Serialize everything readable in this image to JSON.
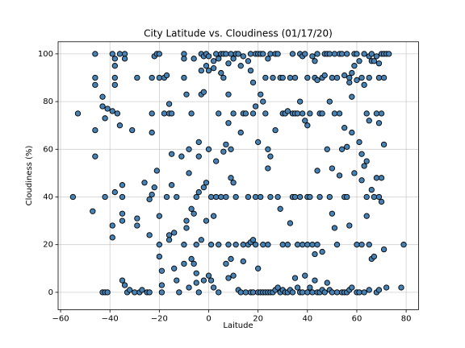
{
  "chart_data": {
    "type": "scatter",
    "title": "City Latitude vs. Cloudiness (01/17/20)",
    "x_label": "Laitude",
    "y_label": "Cloudiness (%)",
    "color": "#4682b4",
    "edgecolor": "#000000",
    "grid": true,
    "xlim": [
      -61,
      85
    ],
    "ylim": [
      -7.3,
      105.1
    ],
    "xticks": [
      {
        "value": -60,
        "label": "−60"
      },
      {
        "value": -40,
        "label": "−40"
      },
      {
        "value": -20,
        "label": "−20"
      },
      0,
      20,
      40,
      60,
      80
    ],
    "yticks": [
      0,
      20,
      40,
      60,
      80,
      100
    ],
    "x": [
      -55,
      -53,
      -46,
      -46,
      -46,
      -46,
      -46,
      -47,
      -43,
      -42,
      -41,
      -43,
      -43,
      -42,
      -42,
      -41,
      -39,
      -39,
      -38,
      -38,
      -38,
      -38,
      -38,
      -39,
      -39,
      -37,
      -36,
      -36,
      -35,
      -35,
      -35,
      -35,
      -35,
      -34,
      -34,
      -34,
      -33,
      -32,
      -31,
      -30,
      -29,
      -29,
      -29,
      -28,
      -27,
      -26,
      -25,
      -24,
      -24,
      -24,
      -23,
      -23,
      -23,
      -23,
      -22,
      -22,
      -21,
      -21,
      -20,
      -20,
      -20,
      -20,
      -20,
      -19,
      -19,
      -19,
      -18,
      -18,
      -17,
      -17,
      -16,
      -16,
      -16,
      -16,
      -15,
      -15,
      -15,
      -14,
      -14,
      -13,
      -13,
      -12,
      -11,
      -10,
      -10,
      -10,
      -10,
      -10,
      -9,
      -9,
      -9,
      -8,
      -8,
      -8,
      -7,
      -7,
      -7,
      -6,
      -6,
      -6,
      -5,
      -5,
      -5,
      -5,
      -4,
      -4,
      -4,
      -4,
      -3,
      -3,
      -3,
      -3,
      -2,
      -2,
      -2,
      -2,
      -1,
      -1,
      -1,
      -1,
      0,
      0,
      0,
      0,
      1,
      1,
      1,
      2,
      2,
      2,
      2,
      3,
      3,
      3,
      4,
      4,
      4,
      4,
      5,
      5,
      5,
      6,
      6,
      6,
      7,
      7,
      7,
      7,
      8,
      8,
      8,
      8,
      8,
      9,
      9,
      9,
      9,
      10,
      10,
      10,
      10,
      11,
      11,
      11,
      12,
      12,
      13,
      13,
      13,
      14,
      14,
      14,
      14,
      15,
      15,
      16,
      16,
      16,
      17,
      17,
      17,
      17,
      18,
      18,
      18,
      18,
      19,
      19,
      19,
      19,
      20,
      20,
      20,
      20,
      21,
      21,
      21,
      21,
      22,
      22,
      22,
      22,
      23,
      23,
      23,
      24,
      24,
      24,
      24,
      24,
      25,
      25,
      25,
      25,
      26,
      26,
      27,
      27,
      27,
      28,
      28,
      28,
      29,
      29,
      29,
      30,
      30,
      30,
      30,
      31,
      31,
      32,
      32,
      32,
      33,
      33,
      33,
      34,
      34,
      34,
      34,
      35,
      35,
      35,
      35,
      36,
      36,
      36,
      37,
      37,
      37,
      37,
      38,
      38,
      38,
      38,
      39,
      39,
      39,
      40,
      40,
      40,
      40,
      40,
      41,
      41,
      41,
      42,
      42,
      42,
      43,
      43,
      43,
      43,
      44,
      44,
      44,
      44,
      44,
      45,
      45,
      45,
      46,
      46,
      46,
      46,
      47,
      47,
      47,
      48,
      48,
      48,
      49,
      49,
      49,
      49,
      50,
      50,
      50,
      50,
      51,
      51,
      51,
      52,
      52,
      52,
      53,
      53,
      53,
      54,
      54,
      54,
      55,
      55,
      55,
      55,
      56,
      56,
      56,
      56,
      57,
      57,
      57,
      57,
      58,
      58,
      58,
      58,
      59,
      59,
      59,
      60,
      60,
      60,
      60,
      61,
      61,
      61,
      62,
      62,
      62,
      62,
      63,
      63,
      63,
      63,
      64,
      64,
      64,
      64,
      65,
      65,
      65,
      65,
      65,
      66,
      66,
      66,
      66,
      67,
      67,
      67,
      68,
      68,
      68,
      68,
      69,
      69,
      69,
      69,
      69,
      70,
      70,
      70,
      70,
      71,
      71,
      71,
      71,
      72,
      72,
      73,
      78,
      79
    ],
    "values": [
      40,
      75,
      100,
      90,
      87,
      68,
      57,
      34,
      0,
      0,
      0,
      82,
      78,
      73,
      40,
      77,
      76,
      100,
      98,
      95,
      90,
      87,
      42,
      28,
      23,
      75,
      100,
      70,
      45,
      40,
      33,
      30,
      5,
      3,
      100,
      98,
      0,
      1,
      68,
      0,
      90,
      28,
      31,
      0,
      1,
      46,
      0,
      0,
      24,
      39,
      67,
      75,
      90,
      41,
      44,
      99,
      100,
      51,
      100,
      90,
      32,
      15,
      20,
      9,
      0,
      3,
      75,
      90,
      91,
      40,
      79,
      75,
      24,
      22,
      45,
      75,
      58,
      25,
      10,
      5,
      40,
      0,
      57,
      100,
      98,
      90,
      20,
      12,
      83,
      30,
      27,
      2,
      50,
      60,
      75,
      35,
      14,
      98,
      33,
      12,
      40,
      20,
      8,
      4,
      63,
      57,
      42,
      0,
      100,
      93,
      83,
      22,
      99,
      84,
      44,
      5,
      100,
      95,
      30,
      46,
      99,
      93,
      7,
      60,
      40,
      20,
      5,
      97,
      94,
      32,
      2,
      100,
      55,
      40,
      98,
      75,
      20,
      0,
      100,
      92,
      40,
      100,
      59,
      90,
      100,
      62,
      40,
      12,
      96,
      83,
      71,
      20,
      6,
      100,
      60,
      48,
      14,
      98,
      75,
      46,
      7,
      100,
      40,
      20,
      100,
      1,
      95,
      67,
      0,
      99,
      75,
      20,
      13,
      75,
      0,
      97,
      40,
      20,
      100,
      93,
      21,
      0,
      88,
      75,
      22,
      0,
      100,
      78,
      40,
      20,
      100,
      63,
      10,
      0,
      100,
      83,
      40,
      0,
      100,
      80,
      20,
      0,
      90,
      75,
      0,
      98,
      60,
      52,
      20,
      0,
      100,
      57,
      40,
      0,
      0,
      90,
      100,
      68,
      1,
      100,
      40,
      2,
      90,
      35,
      0,
      90,
      75,
      20,
      1,
      75,
      0,
      76,
      20,
      0,
      90,
      29,
      1,
      100,
      75,
      40,
      0,
      90,
      75,
      40,
      6,
      75,
      20,
      2,
      80,
      100,
      40,
      0,
      99,
      75,
      20,
      0,
      100,
      72,
      7,
      90,
      70,
      40,
      20,
      0,
      75,
      40,
      2,
      99,
      20,
      0,
      97,
      90,
      16,
      5,
      100,
      89,
      51,
      20,
      0,
      75,
      40,
      0,
      90,
      75,
      17,
      1,
      100,
      91,
      0,
      100,
      60,
      4,
      100,
      80,
      40,
      1,
      90,
      52,
      33,
      0,
      100,
      75,
      27,
      90,
      20,
      0,
      100,
      75,
      49,
      100,
      60,
      0,
      91,
      69,
      40,
      0,
      100,
      61,
      40,
      0,
      90,
      88,
      28,
      1,
      92,
      82,
      67,
      2,
      100,
      95,
      50,
      100,
      89,
      20,
      0,
      97,
      63,
      0,
      90,
      58,
      47,
      20,
      100,
      87,
      53,
      0,
      75,
      55,
      40,
      32,
      99,
      90,
      72,
      20,
      1,
      100,
      97,
      43,
      14,
      97,
      40,
      15,
      99,
      75,
      48,
      0,
      96,
      90,
      71,
      40,
      1,
      100,
      75,
      38,
      48,
      100,
      90,
      62,
      18,
      100,
      2,
      100,
      2,
      20
    ]
  }
}
